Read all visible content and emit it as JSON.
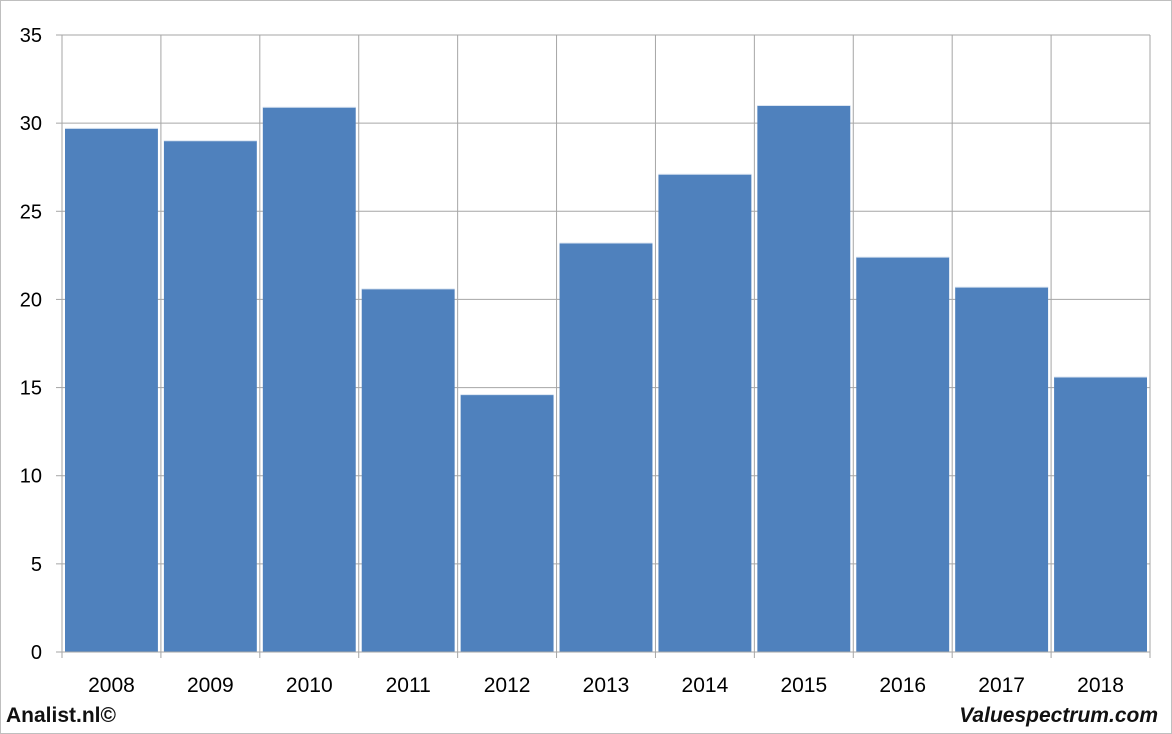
{
  "chart_data": {
    "type": "bar",
    "title": "",
    "xlabel": "",
    "ylabel": "",
    "categories": [
      "2008",
      "2009",
      "2010",
      "2011",
      "2012",
      "2013",
      "2014",
      "2015",
      "2016",
      "2017",
      "2018"
    ],
    "values": [
      29.7,
      29.0,
      30.9,
      20.6,
      14.6,
      23.2,
      27.1,
      31.0,
      22.4,
      20.7,
      15.6
    ],
    "ylim": [
      0,
      35
    ],
    "yticks": [
      "0",
      "5",
      "10",
      "15",
      "20",
      "25",
      "30",
      "35"
    ],
    "grid": true,
    "legend": "none",
    "bar_color": "#4f81bd",
    "grid_color": "#a6a6a6"
  },
  "footer": {
    "left": "Analist.nl©",
    "right": "Valuespectrum.com"
  }
}
